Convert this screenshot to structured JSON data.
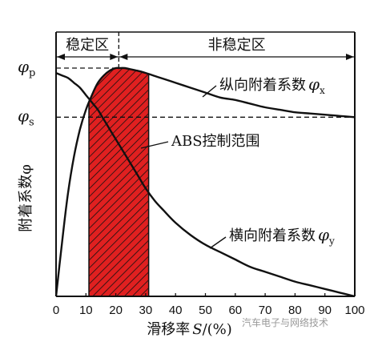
{
  "chart_data": {
    "type": "line",
    "xlabel": "滑移率",
    "xlabel_var": "S",
    "xlabel_unit": "/(%)",
    "ylabel": "附着系数φ",
    "xlim": [
      0,
      100
    ],
    "ylim": [
      0,
      1.0
    ],
    "x_ticks": [
      0,
      10,
      20,
      30,
      40,
      50,
      60,
      70,
      80,
      90,
      100
    ],
    "y_tick_labels": [
      {
        "symbol": "φ",
        "sub": "p",
        "value": 0.93
      },
      {
        "symbol": "φ",
        "sub": "s",
        "value": 0.73
      }
    ],
    "regions": [
      {
        "label": "稳定区",
        "from": 0,
        "to": 21
      },
      {
        "label": "非稳定区",
        "from": 21,
        "to": 100
      }
    ],
    "shaded_band": {
      "label": "ABS控制范围",
      "from": 11,
      "to": 31,
      "color": "#e02020"
    },
    "series": [
      {
        "name": "纵向附着系数φx",
        "name_text": "纵向附着系数",
        "name_symbol": "φ",
        "name_sub": "x",
        "x": [
          0,
          2,
          4,
          6,
          8,
          10,
          12,
          14,
          16,
          18,
          20,
          21,
          23,
          25,
          27,
          30,
          35,
          40,
          45,
          50,
          55,
          60,
          65,
          70,
          75,
          80,
          85,
          90,
          95,
          100
        ],
        "y": [
          0,
          0.22,
          0.42,
          0.57,
          0.68,
          0.76,
          0.82,
          0.87,
          0.9,
          0.92,
          0.93,
          0.93,
          0.93,
          0.925,
          0.92,
          0.91,
          0.89,
          0.87,
          0.85,
          0.83,
          0.81,
          0.8,
          0.785,
          0.77,
          0.76,
          0.75,
          0.745,
          0.74,
          0.735,
          0.73
        ]
      },
      {
        "name": "横向附着系数φy",
        "name_text": "横向附着系数",
        "name_symbol": "φ",
        "name_sub": "y",
        "x": [
          0,
          2,
          4,
          6,
          8,
          10,
          12,
          14,
          16,
          18,
          20,
          22,
          25,
          28,
          30,
          33,
          36,
          40,
          45,
          50,
          55,
          60,
          65,
          70,
          75,
          80,
          85,
          90,
          95,
          100
        ],
        "y": [
          0.91,
          0.9,
          0.89,
          0.87,
          0.85,
          0.82,
          0.79,
          0.76,
          0.72,
          0.68,
          0.64,
          0.6,
          0.54,
          0.48,
          0.44,
          0.39,
          0.35,
          0.3,
          0.25,
          0.21,
          0.18,
          0.15,
          0.12,
          0.1,
          0.08,
          0.06,
          0.045,
          0.03,
          0.015,
          0.0
        ]
      }
    ]
  },
  "watermark": "汽车电子与网络技术"
}
